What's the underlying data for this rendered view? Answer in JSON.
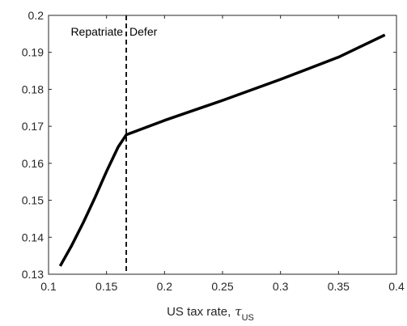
{
  "chart_data": {
    "type": "line",
    "title": "",
    "xlabel": "US tax rate,",
    "xlabel_symbol": "τ",
    "xlabel_subscript": "US",
    "ylabel": "",
    "xlim": [
      0.1,
      0.4
    ],
    "ylim": [
      0.13,
      0.2
    ],
    "x_ticks": [
      "0.1",
      "0.15",
      "0.2",
      "0.25",
      "0.3",
      "0.35",
      "0.4"
    ],
    "y_ticks": [
      "0.13",
      "0.14",
      "0.15",
      "0.16",
      "0.17",
      "0.18",
      "0.19",
      "0.2"
    ],
    "grid": false,
    "series": [
      {
        "color": "#000000",
        "x": [
          0.11,
          0.12,
          0.13,
          0.14,
          0.15,
          0.16,
          0.167,
          0.2,
          0.25,
          0.3,
          0.35,
          0.39
        ],
        "y": [
          0.1322,
          0.1378,
          0.144,
          0.1507,
          0.1578,
          0.1644,
          0.1677,
          0.1716,
          0.177,
          0.1827,
          0.1887,
          0.1947
        ]
      }
    ],
    "threshold": {
      "x": 0.167,
      "style": "dashed",
      "left_label": "Repatriate",
      "right_label": "Defer"
    }
  }
}
